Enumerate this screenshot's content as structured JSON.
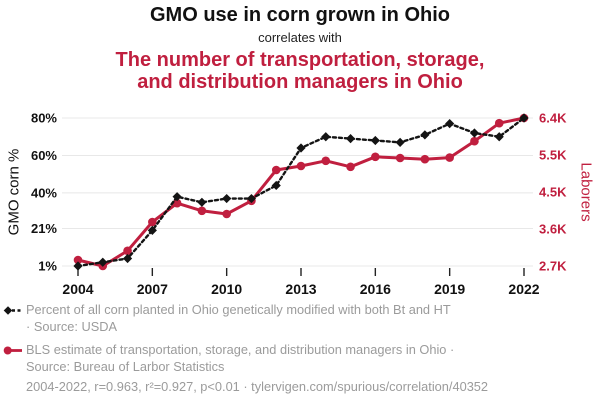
{
  "header": {
    "title": "GMO use in corn grown in Ohio",
    "connector": "correlates with",
    "correlate_line1": "The number of transportation, storage,",
    "correlate_line2": "and distribution managers in Ohio"
  },
  "colors": {
    "red": "#c01f3f",
    "black": "#141414",
    "grid": "#e8e8e8",
    "tick_mark": "#222222",
    "legend_text": "#9b9b9b"
  },
  "chart_data": {
    "type": "line",
    "title": "GMO use in corn grown in Ohio correlates with the number of transportation, storage, and distribution managers in Ohio",
    "x": [
      2004,
      2005,
      2006,
      2007,
      2008,
      2009,
      2010,
      2011,
      2012,
      2013,
      2014,
      2015,
      2016,
      2017,
      2018,
      2019,
      2020,
      2021,
      2022
    ],
    "x_ticks": [
      2004,
      2007,
      2010,
      2013,
      2016,
      2019,
      2022
    ],
    "x_tick_labels": [
      "2004",
      "2007",
      "2010",
      "2013",
      "2016",
      "2019",
      "2022"
    ],
    "series": [
      {
        "name": "Percent of all corn planted in Ohio genetically modified with both Bt and HT",
        "axis": "left",
        "color": "#141414",
        "marker": "diamond",
        "line_style": "dashed",
        "values": [
          1,
          3,
          5,
          20,
          38,
          35,
          37,
          37,
          44,
          64,
          70,
          69,
          68,
          67,
          71,
          77,
          72,
          70,
          80
        ]
      },
      {
        "name": "BLS estimate of transportation, storage, and distribution managers in Ohio",
        "axis": "right",
        "color": "#c01f3f",
        "marker": "circle",
        "line_style": "solid",
        "values": [
          2850,
          2700,
          3080,
          3800,
          4270,
          4080,
          4000,
          4330,
          5100,
          5200,
          5330,
          5180,
          5430,
          5400,
          5370,
          5410,
          5820,
          6270,
          6400
        ]
      }
    ],
    "left_axis": {
      "label": "GMO corn %",
      "range": [
        1,
        80
      ],
      "ticks": [
        1,
        21,
        40,
        60,
        80
      ],
      "tick_labels": [
        "1%",
        "21%",
        "40%",
        "60%",
        "80%"
      ]
    },
    "right_axis": {
      "label": "Laborers",
      "range": [
        2700,
        6400
      ],
      "ticks": [
        2700,
        3625,
        4550,
        5475,
        6400
      ],
      "tick_labels": [
        "2.7K",
        "3.6K",
        "4.5K",
        "5.5K",
        "6.4K"
      ]
    },
    "grid": true,
    "legend_position": "bottom"
  },
  "legend": {
    "items": [
      {
        "marker": "black-diamond-dashed",
        "line1": "Percent of all corn planted in Ohio genetically modified with both Bt and HT",
        "line2": "· Source: USDA"
      },
      {
        "marker": "red-circle-solid",
        "line1": "BLS estimate of transportation, storage, and distribution managers in Ohio ·",
        "line2": "Source: Bureau of Larbor Statistics"
      }
    ]
  },
  "footer": {
    "text": "2004-2022, r=0.963, r²=0.927, p<0.01 · tylervigen.com/spurious/correlation/40352"
  }
}
